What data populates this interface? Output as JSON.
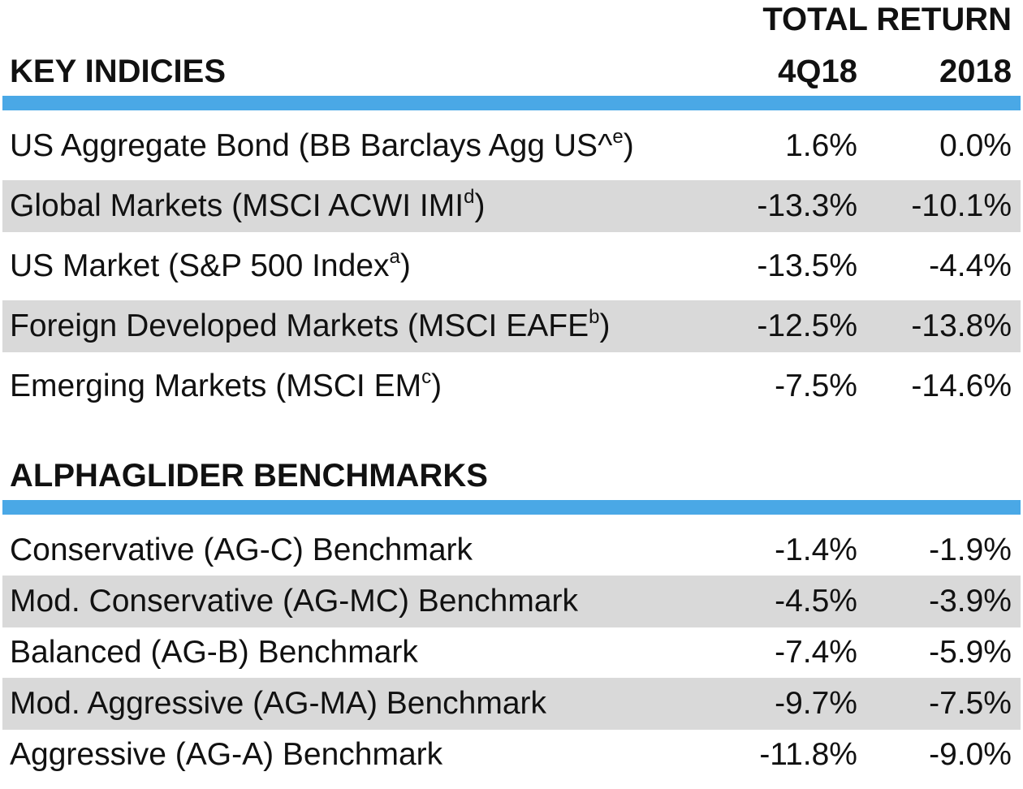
{
  "header": {
    "total_return": "TOTAL RETURN",
    "col1": "4Q18",
    "col2": "2018"
  },
  "accent_color": "#4aa8e6",
  "shade_color": "#d9d9d9",
  "key_indices": {
    "title": "KEY INDICIES",
    "rows": [
      {
        "label": "US Aggregate Bond (BB Barclays Agg US^",
        "sup": "e",
        "tail": ")",
        "q4": "1.6%",
        "year": "0.0%"
      },
      {
        "label": "Global Markets (MSCI ACWI IMI",
        "sup": "d",
        "tail": ")",
        "q4": "-13.3%",
        "year": "-10.1%"
      },
      {
        "label": "US Market (S&P 500 Index",
        "sup": "a",
        "tail": ")",
        "q4": "-13.5%",
        "year": "-4.4%"
      },
      {
        "label": "Foreign Developed Markets (MSCI EAFE",
        "sup": "b",
        "tail": ")",
        "q4": "-12.5%",
        "year": "-13.8%"
      },
      {
        "label": "Emerging Markets (MSCI EM",
        "sup": "c",
        "tail": ")",
        "q4": "-7.5%",
        "year": "-14.6%"
      }
    ]
  },
  "benchmarks": {
    "title": "ALPHAGLIDER BENCHMARKS",
    "rows": [
      {
        "label": "Conservative (AG-C) Benchmark",
        "q4": "-1.4%",
        "year": "-1.9%"
      },
      {
        "label": "Mod. Conservative (AG-MC) Benchmark",
        "q4": "-4.5%",
        "year": "-3.9%"
      },
      {
        "label": "Balanced (AG-B) Benchmark",
        "q4": "-7.4%",
        "year": "-5.9%"
      },
      {
        "label": "Mod. Aggressive (AG-MA) Benchmark",
        "q4": "-9.7%",
        "year": "-7.5%"
      },
      {
        "label": "Aggressive (AG-A) Benchmark",
        "q4": "-11.8%",
        "year": "-9.0%"
      }
    ]
  }
}
